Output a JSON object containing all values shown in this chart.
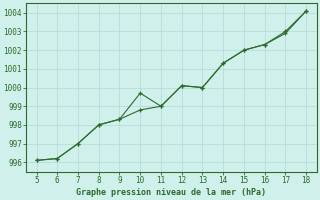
{
  "x": [
    5,
    6,
    7,
    8,
    9,
    10,
    11,
    12,
    13,
    14,
    15,
    16,
    17,
    18
  ],
  "y_line1": [
    996.1,
    996.2,
    997.0,
    998.0,
    998.3,
    998.8,
    999.0,
    1000.1,
    1000.0,
    1001.3,
    1002.0,
    1002.3,
    1002.9,
    1004.1
  ],
  "y_line2": [
    996.1,
    996.2,
    997.0,
    998.0,
    998.3,
    999.7,
    999.0,
    1000.1,
    1000.0,
    1001.3,
    1002.0,
    1002.3,
    1003.0,
    1004.1
  ],
  "line_color": "#2d6b2d",
  "bg_color": "#cff0eb",
  "grid_color": "#b8ddd8",
  "xlabel": "Graphe pression niveau de la mer (hPa)",
  "ylim": [
    995.5,
    1004.5
  ],
  "xlim": [
    4.5,
    18.5
  ],
  "yticks": [
    996,
    997,
    998,
    999,
    1000,
    1001,
    1002,
    1003,
    1004
  ],
  "xticks": [
    5,
    6,
    7,
    8,
    9,
    10,
    11,
    12,
    13,
    14,
    15,
    16,
    17,
    18
  ],
  "tick_fontsize": 5.5,
  "xlabel_fontsize": 6.0
}
